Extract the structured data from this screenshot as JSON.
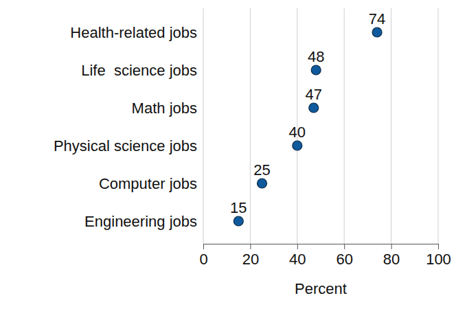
{
  "chart_data": {
    "type": "dot",
    "orientation": "horizontal",
    "categories": [
      "Health-related jobs",
      "Life  science jobs",
      "Math jobs",
      "Physical science jobs",
      "Computer jobs",
      "Engineering jobs"
    ],
    "values": [
      74,
      48,
      47,
      40,
      25,
      15
    ],
    "color": "#0f5a9c",
    "x_label": "Percent",
    "xlim": [
      0,
      100
    ],
    "xticks": [
      0,
      20,
      40,
      60,
      80,
      100
    ],
    "grid": true,
    "data_labels": true
  }
}
